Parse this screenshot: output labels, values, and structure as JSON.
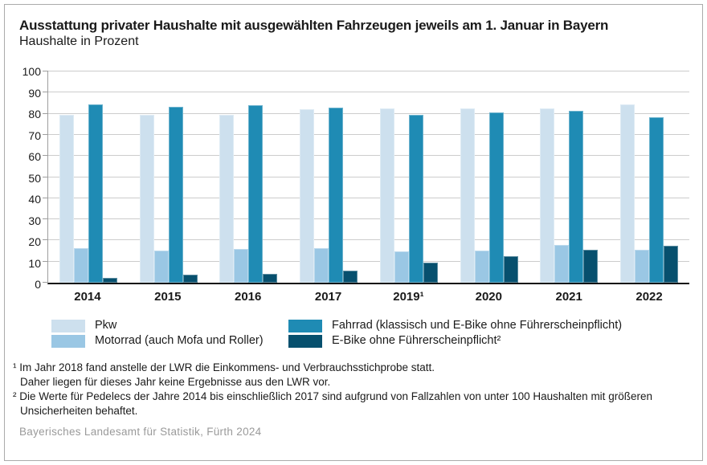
{
  "header": {
    "title": "Ausstattung privater Haushalte mit ausgewählten Fahrzeugen jeweils am 1. Januar in Bayern",
    "subtitle": "Haushalte in Prozent"
  },
  "chart_data": {
    "type": "bar",
    "title": "Ausstattung privater Haushalte mit ausgewählten Fahrzeugen jeweils am 1. Januar in Bayern",
    "subtitle": "Haushalte in Prozent",
    "categories": [
      "2014",
      "2015",
      "2016",
      "2017",
      "2019¹",
      "2020",
      "2021",
      "2022"
    ],
    "series": [
      {
        "name": "Pkw",
        "color": "#cde0ee",
        "values": [
          79.5,
          79.4,
          79.4,
          82.2,
          82.4,
          82.4,
          82.6,
          84.4
        ]
      },
      {
        "name": "Motorrad (auch Mofa und Roller)",
        "color": "#9ac7e4",
        "values": [
          16.2,
          15.1,
          16.0,
          16.2,
          15.0,
          15.3,
          18.0,
          15.7
        ]
      },
      {
        "name": "Fahrrad (klassisch und E-Bike ohne Führerscheinpflicht)",
        "color": "#1f8bb4",
        "values": [
          84.4,
          83.3,
          84.0,
          83.0,
          79.4,
          80.6,
          81.3,
          78.4
        ]
      },
      {
        "name": "E-Bike ohne Führerscheinpflicht²",
        "color": "#07506e",
        "values": [
          2.4,
          3.8,
          4.2,
          5.7,
          9.6,
          12.5,
          15.7,
          17.7
        ]
      }
    ],
    "xlabel": "",
    "ylabel": "",
    "ylim": [
      0,
      100
    ],
    "yticks": [
      100,
      90,
      80,
      70,
      60,
      50,
      40,
      30,
      20,
      10,
      0
    ],
    "grid": true,
    "legend_position": "bottom"
  },
  "footnotes": {
    "fn1_marker": "¹",
    "fn1_line1": "Im Jahr 2018 fand anstelle der LWR die Einkommens- und Verbrauchsstichprobe statt.",
    "fn1_line2": "Daher liegen für dieses Jahr keine Ergebnisse aus den LWR vor.",
    "fn2_marker": "²",
    "fn2_text": "Die Werte für Pedelecs der Jahre 2014 bis einschließlich 2017 sind aufgrund von Fallzahlen von unter 100 Haushalten mit größeren Unsicherheiten behaftet."
  },
  "source": "Bayerisches Landesamt für Statistik, Fürth 2024"
}
